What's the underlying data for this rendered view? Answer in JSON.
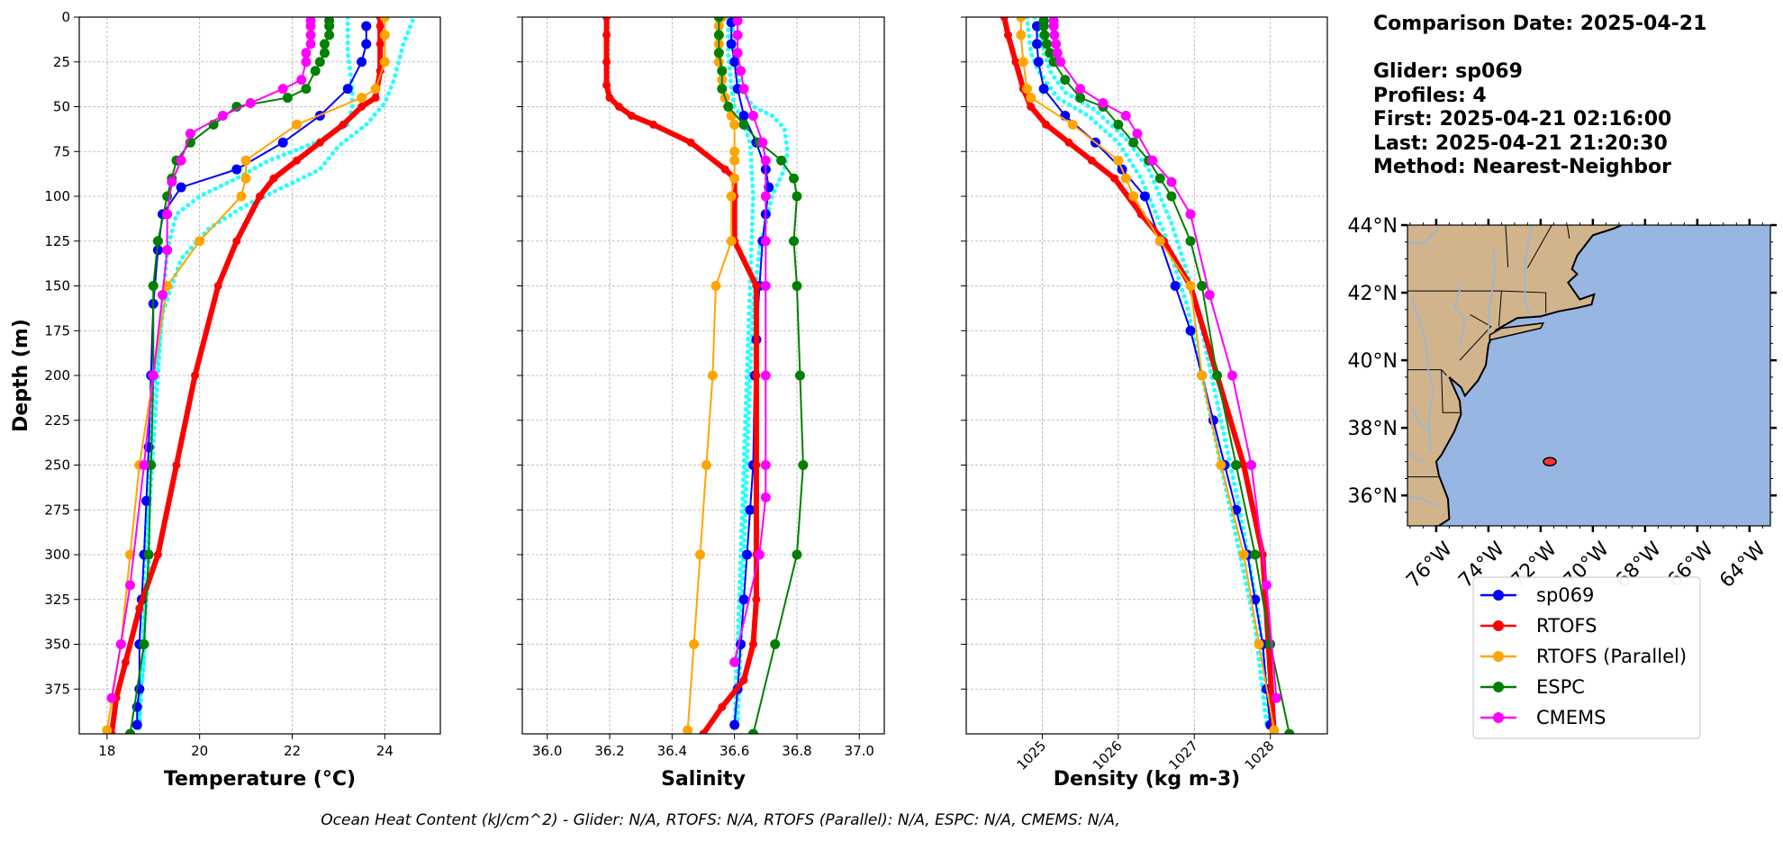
{
  "info": {
    "comparison_date": "Comparison Date: 2025-04-21",
    "glider": "Glider: sp069",
    "profiles": "Profiles: 4",
    "first": "First: 2025-04-21 02:16:00",
    "last": "Last: 2025-04-21 21:20:30",
    "method": "Method: Nearest-Neighbor"
  },
  "caption": "Ocean Heat Content (kJ/cm^2) - Glider: N/A,  RTOFS: N/A,  RTOFS (Parallel): N/A,  ESPC: N/A,  CMEMS: N/A,",
  "legend": [
    {
      "label": "sp069",
      "color": "#0000ff"
    },
    {
      "label": "RTOFS",
      "color": "#ff0000"
    },
    {
      "label": "RTOFS (Parallel)",
      "color": "#ffa500"
    },
    {
      "label": "ESPC",
      "color": "#008000"
    },
    {
      "label": "CMEMS",
      "color": "#ff00ff"
    }
  ],
  "map": {
    "lat_ticks": [
      "44°N",
      "42°N",
      "40°N",
      "38°N",
      "36°N"
    ],
    "lon_ticks": [
      "76°W",
      "74°W",
      "72°W",
      "70°W",
      "68°W",
      "66°W",
      "64°W"
    ],
    "land_color": "#d2b48c",
    "ocean_color": "#97b6e1",
    "glider_position": {
      "lon": -71.65,
      "lat": 37.0
    }
  },
  "chart_data": [
    {
      "type": "line",
      "xlabel": "Temperature (°C)",
      "ylabel": "Depth (m)",
      "xlim": [
        17.4,
        25.2
      ],
      "ylim": [
        400,
        0
      ],
      "xticks": [
        18,
        20,
        22,
        24
      ],
      "yticks": [
        0,
        25,
        50,
        75,
        100,
        125,
        150,
        175,
        200,
        225,
        250,
        275,
        300,
        325,
        350,
        375
      ],
      "grid": true,
      "glider_raw": [
        {
          "x": [
            23.2,
            23.2,
            23.3,
            23.3,
            23.2,
            22.5,
            21.5,
            20.8,
            20.0,
            19.5,
            19.3,
            19.2,
            19.1,
            19.0,
            18.9,
            18.9,
            18.8,
            18.8,
            18.7,
            18.7
          ],
          "y": [
            0,
            20,
            40,
            50,
            60,
            70,
            80,
            90,
            100,
            110,
            130,
            160,
            200,
            240,
            280,
            310,
            340,
            360,
            380,
            400
          ]
        },
        {
          "x": [
            24.6,
            24.4,
            24.2,
            24.0,
            23.6,
            23.0,
            22.6,
            21.8,
            21.0,
            20.2,
            19.6,
            19.2,
            19.0,
            18.9,
            18.8,
            18.8,
            18.7
          ],
          "y": [
            2,
            15,
            35,
            48,
            60,
            72,
            85,
            95,
            105,
            118,
            135,
            165,
            210,
            260,
            310,
            350,
            395
          ]
        }
      ],
      "series": [
        {
          "name": "sp069",
          "color": "#0000ff",
          "lw": 2,
          "x": [
            23.6,
            23.6,
            23.5,
            23.2,
            22.6,
            21.8,
            20.8,
            19.6,
            19.2,
            19.1,
            19.0,
            18.95,
            18.9,
            18.85,
            18.8,
            18.75,
            18.7,
            18.7,
            18.65,
            18.65
          ],
          "y": [
            5,
            15,
            25,
            40,
            55,
            70,
            85,
            95,
            110,
            130,
            160,
            200,
            240,
            270,
            300,
            325,
            350,
            375,
            385,
            395
          ]
        },
        {
          "name": "RTOFS",
          "color": "#ff0000",
          "lw": 6,
          "x": [
            23.9,
            23.9,
            23.9,
            23.9,
            23.8,
            23.5,
            23.1,
            22.6,
            22.1,
            21.6,
            21.3,
            20.8,
            20.4,
            19.9,
            19.5,
            19.1,
            18.7,
            18.4,
            18.2,
            18.1
          ],
          "y": [
            0,
            5,
            15,
            30,
            45,
            50,
            60,
            70,
            80,
            90,
            100,
            125,
            150,
            200,
            250,
            300,
            330,
            360,
            380,
            400
          ]
        },
        {
          "name": "RTOFS (Parallel)",
          "color": "#ffa500",
          "lw": 2,
          "x": [
            24.0,
            24.0,
            24.0,
            23.8,
            23.5,
            22.1,
            21.0,
            21.0,
            20.9,
            20.0,
            19.3,
            19.0,
            18.7,
            18.5,
            18.3,
            18.0
          ],
          "y": [
            0,
            10,
            25,
            40,
            45,
            60,
            80,
            90,
            100,
            125,
            150,
            200,
            250,
            300,
            350,
            398
          ]
        },
        {
          "name": "ESPC",
          "color": "#008000",
          "lw": 2,
          "x": [
            22.8,
            22.8,
            22.8,
            22.7,
            22.7,
            22.6,
            22.5,
            22.3,
            21.9,
            20.8,
            20.3,
            19.8,
            19.5,
            19.4,
            19.3,
            19.1,
            19.0,
            19.0,
            18.95,
            18.9,
            18.8,
            18.5
          ],
          "y": [
            2,
            5,
            10,
            15,
            20,
            25,
            30,
            40,
            45,
            50,
            60,
            70,
            80,
            90,
            100,
            125,
            150,
            200,
            250,
            300,
            350,
            400
          ]
        },
        {
          "name": "CMEMS",
          "color": "#ff00ff",
          "lw": 2,
          "x": [
            22.4,
            22.4,
            22.4,
            22.4,
            22.3,
            22.3,
            22.2,
            21.8,
            21.1,
            20.5,
            19.8,
            19.6,
            19.4,
            19.3,
            19.3,
            19.2,
            19.0,
            18.8,
            18.5,
            18.3,
            18.1
          ],
          "y": [
            2,
            5,
            10,
            15,
            20,
            25,
            35,
            40,
            48,
            55,
            65,
            80,
            92,
            110,
            130,
            155,
            200,
            250,
            317,
            350,
            380
          ]
        }
      ]
    },
    {
      "type": "line",
      "xlabel": "Salinity",
      "xlim": [
        35.92,
        37.08
      ],
      "ylim": [
        400,
        0
      ],
      "xticks": [
        36.0,
        36.2,
        36.4,
        36.6,
        36.8,
        37.0
      ],
      "yticks": [
        0,
        25,
        50,
        75,
        100,
        125,
        150,
        175,
        200,
        225,
        250,
        275,
        300,
        325,
        350,
        375
      ],
      "grid": true,
      "glider_raw": [
        {
          "x": [
            36.58,
            36.58,
            36.59,
            36.6,
            36.62,
            36.65,
            36.66,
            36.65,
            36.64,
            36.63,
            36.62,
            36.61,
            36.6
          ],
          "y": [
            0,
            20,
            40,
            50,
            55,
            70,
            100,
            150,
            200,
            250,
            300,
            350,
            395
          ]
        },
        {
          "x": [
            36.59,
            36.6,
            36.62,
            36.66,
            36.72,
            36.76,
            36.77,
            36.76,
            36.72,
            36.68,
            36.66,
            36.65,
            36.64,
            36.63,
            36.62,
            36.61
          ],
          "y": [
            0,
            20,
            40,
            50,
            55,
            62,
            75,
            85,
            100,
            130,
            160,
            200,
            250,
            300,
            350,
            395
          ]
        }
      ],
      "series": [
        {
          "name": "sp069",
          "color": "#0000ff",
          "lw": 2,
          "x": [
            36.59,
            36.59,
            36.6,
            36.61,
            36.63,
            36.67,
            36.7,
            36.71,
            36.7,
            36.69,
            36.68,
            36.67,
            36.665,
            36.66,
            36.65,
            36.64,
            36.63,
            36.62,
            36.61,
            36.6
          ],
          "y": [
            3,
            15,
            25,
            40,
            55,
            70,
            85,
            95,
            110,
            125,
            150,
            180,
            200,
            250,
            275,
            300,
            325,
            350,
            375,
            395
          ]
        },
        {
          "name": "RTOFS",
          "color": "#ff0000",
          "lw": 6,
          "x": [
            36.19,
            36.19,
            36.19,
            36.19,
            36.2,
            36.23,
            36.27,
            36.34,
            36.46,
            36.57,
            36.6,
            36.6,
            36.6,
            36.67,
            36.67,
            36.67,
            36.67,
            36.67,
            36.66,
            36.63,
            36.56,
            36.5
          ],
          "y": [
            0,
            10,
            25,
            38,
            45,
            50,
            55,
            60,
            70,
            85,
            90,
            100,
            125,
            150,
            200,
            250,
            300,
            325,
            350,
            370,
            385,
            400
          ]
        },
        {
          "name": "RTOFS (Parallel)",
          "color": "#ffa500",
          "lw": 2,
          "x": [
            36.56,
            36.55,
            36.55,
            36.55,
            36.56,
            36.57,
            36.59,
            36.6,
            36.6,
            36.6,
            36.6,
            36.59,
            36.59,
            36.54,
            36.53,
            36.51,
            36.49,
            36.47,
            36.45
          ],
          "y": [
            0,
            5,
            15,
            25,
            35,
            45,
            55,
            60,
            75,
            80,
            90,
            100,
            125,
            150,
            200,
            250,
            300,
            350,
            398
          ]
        },
        {
          "name": "ESPC",
          "color": "#008000",
          "lw": 2,
          "x": [
            36.55,
            36.55,
            36.55,
            36.56,
            36.56,
            36.58,
            36.63,
            36.68,
            36.75,
            36.79,
            36.8,
            36.79,
            36.8,
            36.81,
            36.82,
            36.8,
            36.73,
            36.66
          ],
          "y": [
            0,
            10,
            20,
            30,
            40,
            50,
            60,
            70,
            80,
            90,
            100,
            125,
            150,
            200,
            250,
            300,
            350,
            400
          ]
        },
        {
          "name": "CMEMS",
          "color": "#ff00ff",
          "lw": 2,
          "x": [
            36.61,
            36.61,
            36.61,
            36.62,
            36.63,
            36.66,
            36.69,
            36.7,
            36.7,
            36.7,
            36.7,
            36.7,
            36.7,
            36.7,
            36.68,
            36.6
          ],
          "y": [
            2,
            10,
            20,
            30,
            40,
            55,
            70,
            80,
            100,
            125,
            150,
            200,
            250,
            268,
            300,
            360
          ]
        }
      ]
    },
    {
      "type": "line",
      "xlabel": "Density (kg m-3)",
      "xlim": [
        1024.0,
        1028.75
      ],
      "ylim": [
        400,
        0
      ],
      "xticks": [
        1025,
        1026,
        1027,
        1028
      ],
      "yticks": [
        0,
        25,
        50,
        75,
        100,
        125,
        150,
        175,
        200,
        225,
        250,
        275,
        300,
        325,
        350,
        375
      ],
      "grid": true,
      "glider_raw": [
        {
          "x": [
            1024.8,
            1024.85,
            1024.95,
            1025.2,
            1025.6,
            1026.0,
            1026.3,
            1026.6,
            1026.9,
            1027.2,
            1027.5,
            1027.8,
            1027.95
          ],
          "y": [
            0,
            20,
            30,
            45,
            55,
            70,
            90,
            120,
            160,
            220,
            280,
            340,
            395
          ]
        },
        {
          "x": [
            1024.9,
            1025.0,
            1025.1,
            1025.3,
            1025.7,
            1026.1,
            1026.4,
            1026.7,
            1027.0,
            1027.3,
            1027.6,
            1027.85,
            1028.0
          ],
          "y": [
            0,
            15,
            30,
            42,
            52,
            68,
            85,
            115,
            155,
            215,
            275,
            335,
            395
          ]
        }
      ],
      "series": [
        {
          "name": "sp069",
          "color": "#0000ff",
          "lw": 2,
          "x": [
            1024.93,
            1024.93,
            1024.95,
            1025.02,
            1025.3,
            1025.7,
            1026.05,
            1026.35,
            1026.55,
            1026.75,
            1026.95,
            1027.1,
            1027.25,
            1027.4,
            1027.55,
            1027.7,
            1027.8,
            1027.9,
            1027.95,
            1028.0
          ],
          "y": [
            5,
            15,
            25,
            40,
            55,
            70,
            85,
            100,
            125,
            150,
            175,
            200,
            225,
            250,
            275,
            300,
            325,
            350,
            375,
            395
          ]
        },
        {
          "name": "RTOFS",
          "color": "#ff0000",
          "lw": 6,
          "x": [
            1024.5,
            1024.55,
            1024.65,
            1024.75,
            1024.85,
            1025.05,
            1025.35,
            1025.65,
            1025.95,
            1026.3,
            1026.6,
            1026.95,
            1027.3,
            1027.65,
            1027.9,
            1028.05
          ],
          "y": [
            0,
            10,
            25,
            40,
            50,
            60,
            70,
            80,
            90,
            110,
            125,
            150,
            200,
            250,
            300,
            400
          ]
        },
        {
          "name": "RTOFS (Parallel)",
          "color": "#ffa500",
          "lw": 2,
          "x": [
            1024.72,
            1024.72,
            1024.75,
            1024.8,
            1024.85,
            1025.4,
            1026.0,
            1026.1,
            1026.2,
            1026.55,
            1026.95,
            1027.1,
            1027.35,
            1027.65,
            1027.85,
            1028.05
          ],
          "y": [
            0,
            10,
            25,
            40,
            45,
            60,
            80,
            90,
            100,
            125,
            150,
            200,
            250,
            300,
            350,
            398
          ]
        },
        {
          "name": "ESPC",
          "color": "#008000",
          "lw": 2,
          "x": [
            1025.02,
            1025.02,
            1025.03,
            1025.06,
            1025.1,
            1025.15,
            1025.3,
            1025.5,
            1025.8,
            1026.0,
            1026.2,
            1026.4,
            1026.55,
            1026.7,
            1026.95,
            1027.1,
            1027.3,
            1027.55,
            1027.8,
            1028.0,
            1028.25
          ],
          "y": [
            2,
            5,
            10,
            15,
            20,
            25,
            35,
            45,
            50,
            60,
            70,
            80,
            90,
            100,
            125,
            150,
            200,
            250,
            300,
            350,
            400
          ]
        },
        {
          "name": "CMEMS",
          "color": "#ff00ff",
          "lw": 2,
          "x": [
            1025.15,
            1025.15,
            1025.16,
            1025.18,
            1025.2,
            1025.24,
            1025.5,
            1025.8,
            1026.1,
            1026.25,
            1026.45,
            1026.7,
            1026.95,
            1027.2,
            1027.5,
            1027.75,
            1027.95,
            1028.08
          ],
          "y": [
            2,
            5,
            10,
            15,
            20,
            25,
            40,
            48,
            55,
            65,
            80,
            92,
            110,
            155,
            200,
            250,
            317,
            380
          ]
        }
      ]
    }
  ]
}
